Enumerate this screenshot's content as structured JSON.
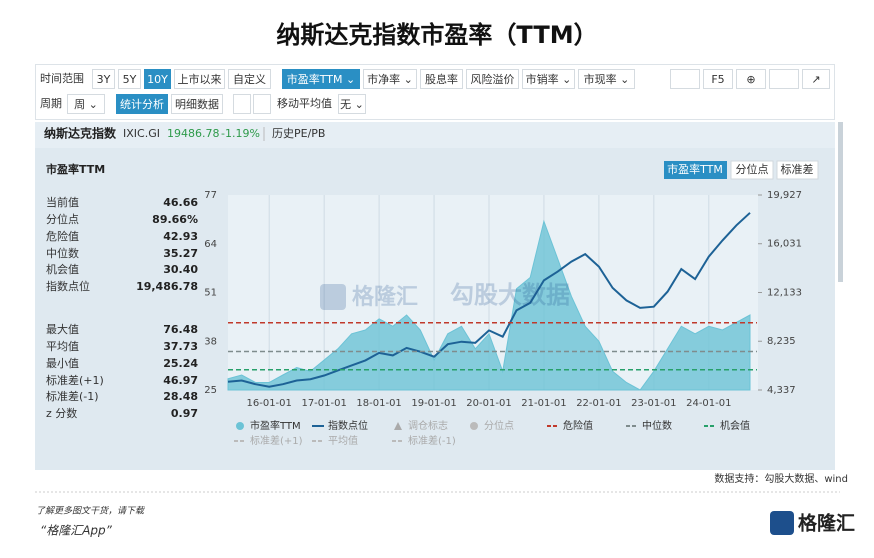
{
  "header": {
    "title": "纳斯达克指数市盈率（TTM）"
  },
  "toolbar": {
    "row1": [
      "时间范围",
      "3Y",
      "5Y",
      "10Y",
      "上市以来",
      "自定义",
      "市盈率TTM",
      "市净率",
      "股息率",
      "风险溢价",
      "市销率",
      "市现率"
    ],
    "f5": "F5",
    "row2": [
      "周期",
      "周",
      "统计分析",
      "明细数据",
      "移动平均值",
      "无"
    ]
  },
  "info": {
    "name": "纳斯达克指数",
    "code": "IXIC.GI",
    "price": "19486.78",
    "change": "-1.19%",
    "link": "历史PE/PB"
  },
  "chart_data": {
    "type": "area_line",
    "title": "市盈率TTM",
    "tabs": [
      "市盈率TTM",
      "分位点",
      "标准差"
    ],
    "stats": [
      [
        "当前值",
        "46.66"
      ],
      [
        "分位点",
        "89.66%"
      ],
      [
        "危险值",
        "42.93"
      ],
      [
        "中位数",
        "35.27"
      ],
      [
        "机会值",
        "30.40"
      ],
      [
        "指数点位",
        "19,486.78"
      ],
      [
        "最大值",
        "76.48"
      ],
      [
        "平均值",
        "37.73"
      ],
      [
        "最小值",
        "25.24"
      ],
      [
        "标准差(+1)",
        "46.97"
      ],
      [
        "标准差(-1)",
        "28.48"
      ],
      [
        "z 分数",
        "0.97"
      ]
    ],
    "x": [
      "15-04-01",
      "15-07-01",
      "15-10-01",
      "16-01-01",
      "16-04-01",
      "16-07-01",
      "16-10-01",
      "17-01-01",
      "17-04-01",
      "17-07-01",
      "17-10-01",
      "18-01-01",
      "18-04-01",
      "18-07-01",
      "18-10-01",
      "19-01-01",
      "19-04-01",
      "19-07-01",
      "19-10-01",
      "20-01-01",
      "20-04-01",
      "20-07-01",
      "20-10-01",
      "21-01-01",
      "21-04-01",
      "21-07-01",
      "21-10-01",
      "22-01-01",
      "22-04-01",
      "22-07-01",
      "22-10-01",
      "23-01-01",
      "23-04-01",
      "23-07-01",
      "23-10-01",
      "24-01-01",
      "24-04-01",
      "24-07-01",
      "24-10-01"
    ],
    "series": [
      {
        "name": "市盈率TTM",
        "kind": "area",
        "color": "#6cc3d6",
        "values": [
          28,
          29,
          27,
          27,
          29,
          31,
          30,
          33,
          36,
          40,
          41,
          44,
          42,
          45,
          41,
          33,
          40,
          42,
          36,
          40,
          30,
          52,
          55,
          70,
          60,
          50,
          42,
          38,
          30,
          27,
          25,
          30,
          36,
          42,
          40,
          42,
          41,
          43,
          45
        ]
      },
      {
        "name": "指数点位",
        "kind": "line",
        "axis": "y2",
        "color": "#1d6296",
        "values": [
          5000,
          5100,
          4800,
          4600,
          4800,
          5100,
          5200,
          5500,
          5900,
          6300,
          6700,
          7300,
          7100,
          7700,
          7400,
          7000,
          8000,
          8200,
          8100,
          9100,
          8600,
          10700,
          11300,
          13100,
          13800,
          14600,
          15200,
          14200,
          12500,
          11500,
          10900,
          11000,
          12200,
          14000,
          13200,
          15000,
          16300,
          17500,
          18500
        ]
      }
    ],
    "reference_lines": [
      {
        "name": "危险值",
        "value": 42.93,
        "color": "#c0392b"
      },
      {
        "name": "中位数",
        "value": 35.27,
        "color": "#7f8c8d"
      },
      {
        "name": "机会值",
        "value": 30.4,
        "color": "#27a06a"
      }
    ],
    "legend_inactive": [
      "调仓标志",
      "分位点",
      "标准差(+1)",
      "平均值",
      "标准差(-1)"
    ],
    "ylim": [
      25,
      77
    ],
    "yticks": [
      25,
      38,
      51,
      64,
      77
    ],
    "y2lim": [
      4337,
      19927
    ],
    "y2ticks": [
      {
        "value": 4337,
        "label": "4,337"
      },
      {
        "value": 8235,
        "label": "8,235"
      },
      {
        "value": 12133,
        "label": "12,133"
      },
      {
        "value": 16031,
        "label": "16,031"
      },
      {
        "value": 19927,
        "label": "19,927"
      }
    ],
    "xticks": [
      "16-01-01",
      "17-01-01",
      "18-01-01",
      "19-01-01",
      "20-01-01",
      "21-01-01",
      "22-01-01",
      "23-01-01",
      "24-01-01"
    ],
    "grid": "x"
  },
  "watermarks": [
    "格隆汇",
    "勾股大数据"
  ],
  "footer": {
    "source": "数据支持：勾股大数据、wind",
    "promo": "了解更多图文干货，请下载",
    "app": "“格隆汇App”",
    "logo": "格隆汇"
  }
}
